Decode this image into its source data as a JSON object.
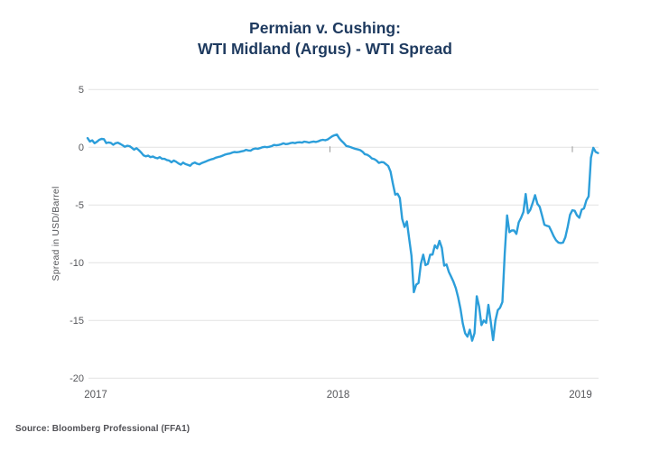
{
  "title": {
    "line1": "Permian v. Cushing:",
    "line2": "WTI Midland (Argus) - WTI Spread"
  },
  "y_axis": {
    "label": "Spread in USD/Barrel",
    "ticks": [
      5,
      0,
      -5,
      -10,
      -15,
      -20
    ]
  },
  "x_axis": {
    "ticks": [
      2017,
      2018,
      2019
    ]
  },
  "source": "Source: Bloomberg Professional (FFA1)",
  "colors": {
    "line": "#2C9EDA",
    "title": "#1E3A5F",
    "axis_text": "#55565A",
    "grid": "#E2E2E2",
    "tick_mark": "#999999",
    "source_text": "#515156"
  },
  "chart_data": {
    "type": "line",
    "title": "Permian v. Cushing: WTI Midland (Argus) - WTI Spread",
    "ylabel": "Spread in USD/Barrel",
    "unit": "USD/Barrel",
    "series_name": "WTI Midland (Argus) - WTI spread",
    "ylim": [
      -20,
      5
    ],
    "x_range_years": [
      2017.0,
      2019.11
    ],
    "x_start": 2017.0,
    "x_step_years": 0.009615,
    "grid": "horizontal-only",
    "legend": "none",
    "values": [
      0.8,
      0.5,
      0.6,
      0.35,
      0.48,
      0.65,
      0.73,
      0.7,
      0.37,
      0.42,
      0.38,
      0.22,
      0.35,
      0.4,
      0.3,
      0.18,
      0.05,
      0.13,
      0.1,
      -0.05,
      -0.2,
      -0.08,
      -0.25,
      -0.45,
      -0.7,
      -0.78,
      -0.72,
      -0.85,
      -0.8,
      -0.9,
      -0.95,
      -0.85,
      -1.0,
      -1.0,
      -1.1,
      -1.15,
      -1.3,
      -1.15,
      -1.25,
      -1.4,
      -1.5,
      -1.32,
      -1.45,
      -1.52,
      -1.6,
      -1.4,
      -1.32,
      -1.42,
      -1.48,
      -1.36,
      -1.28,
      -1.2,
      -1.12,
      -1.05,
      -1.0,
      -0.9,
      -0.84,
      -0.8,
      -0.72,
      -0.63,
      -0.58,
      -0.54,
      -0.46,
      -0.41,
      -0.43,
      -0.4,
      -0.35,
      -0.31,
      -0.22,
      -0.27,
      -0.29,
      -0.16,
      -0.1,
      -0.13,
      -0.07,
      0.0,
      0.04,
      0.01,
      0.05,
      0.1,
      0.2,
      0.17,
      0.2,
      0.26,
      0.34,
      0.27,
      0.3,
      0.36,
      0.4,
      0.36,
      0.42,
      0.44,
      0.41,
      0.49,
      0.46,
      0.41,
      0.46,
      0.5,
      0.46,
      0.52,
      0.61,
      0.65,
      0.61,
      0.68,
      0.82,
      0.96,
      1.05,
      1.1,
      0.78,
      0.55,
      0.35,
      0.12,
      0.07,
      0.0,
      -0.07,
      -0.14,
      -0.19,
      -0.25,
      -0.38,
      -0.6,
      -0.65,
      -0.78,
      -0.97,
      -1.02,
      -1.15,
      -1.35,
      -1.28,
      -1.3,
      -1.45,
      -1.62,
      -2.1,
      -3.15,
      -4.1,
      -4.02,
      -4.4,
      -6.2,
      -6.9,
      -6.42,
      -7.95,
      -9.4,
      -12.55,
      -11.9,
      -11.75,
      -10.1,
      -9.3,
      -10.2,
      -10.1,
      -9.3,
      -9.3,
      -8.5,
      -8.75,
      -8.1,
      -8.7,
      -10.25,
      -10.15,
      -10.8,
      -11.2,
      -11.65,
      -12.2,
      -13.0,
      -14.0,
      -15.25,
      -16.1,
      -16.4,
      -15.8,
      -16.75,
      -16.1,
      -12.9,
      -13.8,
      -15.4,
      -15.0,
      -15.2,
      -13.65,
      -15.1,
      -16.7,
      -15.0,
      -14.1,
      -13.9,
      -13.4,
      -9.2,
      -5.9,
      -7.35,
      -7.2,
      -7.2,
      -7.5,
      -6.5,
      -6.1,
      -5.6,
      -4.05,
      -5.7,
      -5.4,
      -4.8,
      -4.15,
      -4.9,
      -5.15,
      -5.9,
      -6.7,
      -6.8,
      -6.85,
      -7.25,
      -7.7,
      -8.05,
      -8.25,
      -8.3,
      -8.25,
      -7.8,
      -6.9,
      -5.85,
      -5.45,
      -5.5,
      -5.9,
      -6.1,
      -5.4,
      -5.3,
      -4.6,
      -4.25,
      -0.9,
      -0.05,
      -0.4,
      -0.5
    ]
  }
}
